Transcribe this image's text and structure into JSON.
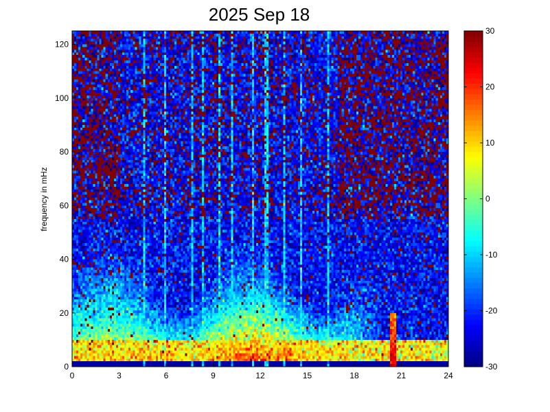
{
  "chart_data": {
    "type": "heatmap",
    "title": "2025 Sep 18",
    "xlabel": "",
    "ylabel": "frequency in mHz",
    "x_range": [
      0,
      24
    ],
    "y_range": [
      0,
      125
    ],
    "x_ticks": [
      0,
      3,
      6,
      9,
      12,
      15,
      18,
      21,
      24
    ],
    "y_ticks": [
      0,
      20,
      40,
      60,
      80,
      100,
      120
    ],
    "colorbar": {
      "range": [
        -30,
        30
      ],
      "ticks": [
        -30,
        -20,
        -10,
        0,
        10,
        20,
        30
      ],
      "colormap": "jet"
    },
    "grid": false,
    "features": {
      "low_frequency_band_mHz": [
        0,
        10
      ],
      "low_frequency_level_dB": 12,
      "broadband_activity_hours": [
        0,
        17
      ],
      "broadband_activity_top_mHz": 45,
      "broadband_activity_level_dB": 0,
      "background_level_dB": -22,
      "high_freq_noise_level_dB": 30,
      "strong_event": {
        "hour": 20.5,
        "max_mHz": 20,
        "level_dB": 25
      },
      "vertical_streaks_hours": [
        4.6,
        5.9,
        7.6,
        8.3,
        9.4,
        10.2,
        11.5,
        12.4,
        13.5,
        14.6,
        16.4
      ]
    }
  }
}
